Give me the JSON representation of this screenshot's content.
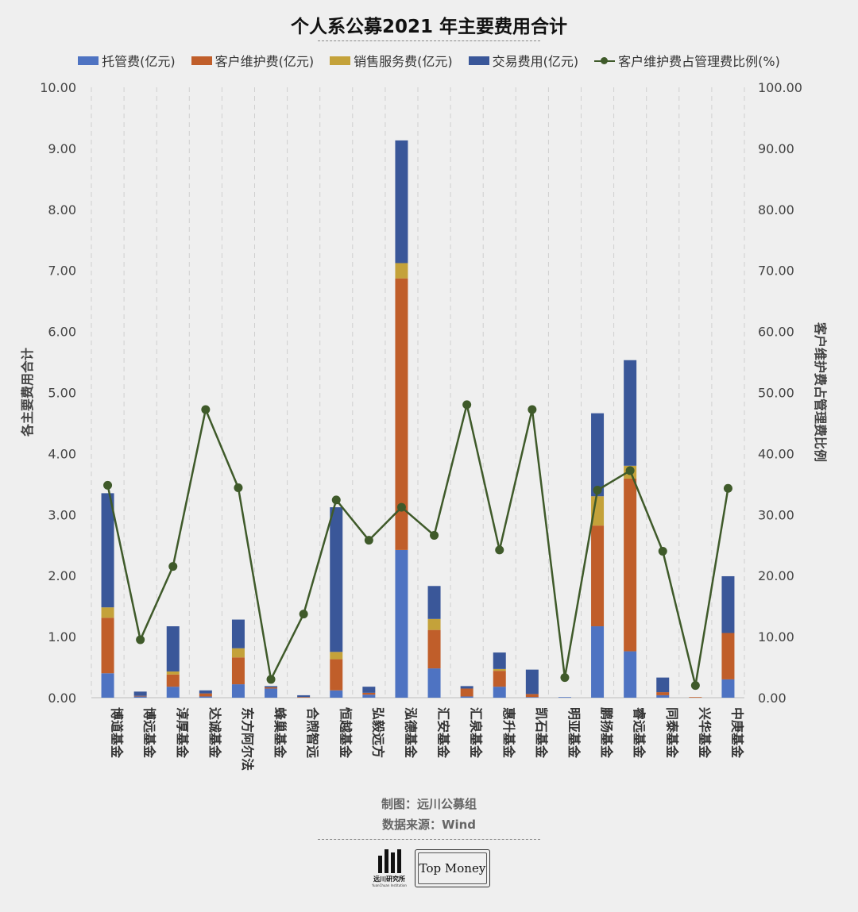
{
  "chart_data": {
    "type": "bar",
    "title": "个人系公募2021 年主要费用合计",
    "ylabel": "各主要费用合计",
    "y2label": "客户维护费占管理费比例",
    "ylim": [
      0,
      10
    ],
    "y2lim": [
      0,
      100
    ],
    "yticks": [
      "0.00",
      "1.00",
      "2.00",
      "3.00",
      "4.00",
      "5.00",
      "6.00",
      "7.00",
      "8.00",
      "9.00",
      "10.00"
    ],
    "y2ticks": [
      "0.00",
      "10.00",
      "20.00",
      "30.00",
      "40.00",
      "50.00",
      "60.00",
      "70.00",
      "80.00",
      "90.00",
      "100.00"
    ],
    "categories": [
      "博道基金",
      "博远基金",
      "淳厚基金",
      "达诚基金",
      "东方阿尔法",
      "蜂巢基金",
      "合煦智远",
      "恒越基金",
      "弘毅远方",
      "泓德基金",
      "汇安基金",
      "汇泉基金",
      "惠升基金",
      "凯石基金",
      "明亚基金",
      "鹏扬基金",
      "睿远基金",
      "同泰基金",
      "兴华基金",
      "中庚基金"
    ],
    "series": [
      {
        "name": "托管费(亿元)",
        "type": "bar",
        "color": "#4e73c2",
        "values": [
          0.4,
          0.02,
          0.18,
          0.02,
          0.22,
          0.15,
          0.0,
          0.12,
          0.05,
          2.42,
          0.48,
          0.02,
          0.18,
          0.01,
          0.01,
          1.17,
          0.76,
          0.04,
          0.0,
          0.3
        ]
      },
      {
        "name": "客户维护费(亿元)",
        "type": "bar",
        "color": "#c05e2a",
        "values": [
          0.91,
          0.01,
          0.2,
          0.05,
          0.44,
          0.02,
          0.01,
          0.51,
          0.03,
          4.45,
          0.63,
          0.13,
          0.26,
          0.05,
          0.0,
          1.65,
          2.83,
          0.05,
          0.01,
          0.76
        ]
      },
      {
        "name": "销售服务费(亿元)",
        "type": "bar",
        "color": "#c4a23a",
        "values": [
          0.17,
          0.0,
          0.05,
          0.0,
          0.15,
          0.0,
          0.0,
          0.12,
          0.0,
          0.25,
          0.18,
          0.0,
          0.03,
          0.0,
          0.0,
          0.48,
          0.21,
          0.0,
          0.0,
          0.0
        ]
      },
      {
        "name": "交易费用(亿元)",
        "type": "bar",
        "color": "#3a5799",
        "values": [
          1.87,
          0.07,
          0.74,
          0.05,
          0.47,
          0.02,
          0.03,
          2.37,
          0.1,
          2.01,
          0.54,
          0.04,
          0.27,
          0.4,
          0.0,
          1.36,
          1.73,
          0.24,
          0.0,
          0.93
        ]
      },
      {
        "name": "客户维护费占管理费比例(%)",
        "type": "line",
        "axis": "right",
        "color": "#3f5a2a",
        "values": [
          34.8,
          9.5,
          21.5,
          47.2,
          34.4,
          3.0,
          13.7,
          32.4,
          25.8,
          31.2,
          26.6,
          48.0,
          24.2,
          47.2,
          3.3,
          34.0,
          37.2,
          24.0,
          2.0,
          34.3
        ]
      }
    ]
  },
  "footer": {
    "credit": "制图：远川公募组",
    "source": "数据来源：Wind"
  },
  "logos": {
    "left_cn": "远川研究所",
    "left_en": "YuanChuan Institution",
    "right": "Top Money"
  }
}
